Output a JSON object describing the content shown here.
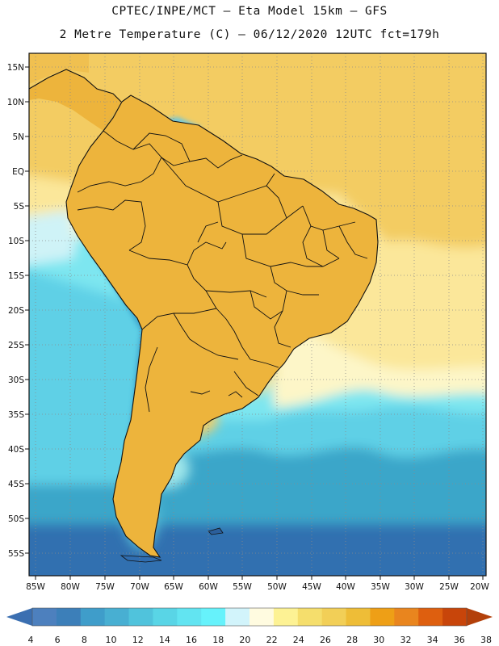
{
  "title": {
    "line1": "CPTEC/INPE/MCT –  Eta Model 15km – GFS",
    "line2": "2 Metre Temperature (C) – 06/12/2020 12UTC fct=179h"
  },
  "map": {
    "lat_labels": [
      "15N",
      "10N",
      "5N",
      "EQ",
      "5S",
      "10S",
      "15S",
      "20S",
      "25S",
      "30S",
      "35S",
      "40S",
      "45S",
      "50S",
      "55S"
    ],
    "lon_labels": [
      "85W",
      "80W",
      "75W",
      "70W",
      "65W",
      "60W",
      "55W",
      "50W",
      "45W",
      "40W",
      "35W",
      "30W",
      "25W",
      "20W"
    ],
    "extent": {
      "lon_min": -86.5,
      "lon_max": -19.5,
      "lat_max": 16.5,
      "lat_min": -58.0
    },
    "colors": {
      "ocean_tropical": "#f3cc62",
      "ocean_subtropical": "#fbe79a",
      "ocean_cool": "#7de6f0",
      "ocean_cold": "#3aa6c9",
      "ocean_polar": "#3170b0",
      "land_warm": "#edb43c",
      "land_hot": "#e58f28",
      "andes": "#3fa9d0",
      "border": "#111111"
    }
  },
  "colorbar": {
    "labels": [
      "4",
      "6",
      "8",
      "10",
      "12",
      "14",
      "16",
      "18",
      "20",
      "22",
      "24",
      "26",
      "28",
      "30",
      "32",
      "34",
      "36",
      "38"
    ],
    "colors": [
      "#4d80be",
      "#3c7fb9",
      "#3f9dca",
      "#48afd2",
      "#50c3dc",
      "#59d5e6",
      "#62e4f1",
      "#66f2fb",
      "#d2f4fb",
      "#fffbe0",
      "#fdf294",
      "#f5de6c",
      "#f2cf57",
      "#eebd37",
      "#ee9f16",
      "#e9851e",
      "#de5f0f",
      "#c8450a"
    ],
    "left_arrow_color": "#3b6fb1",
    "right_arrow_color": "#b3400a"
  }
}
